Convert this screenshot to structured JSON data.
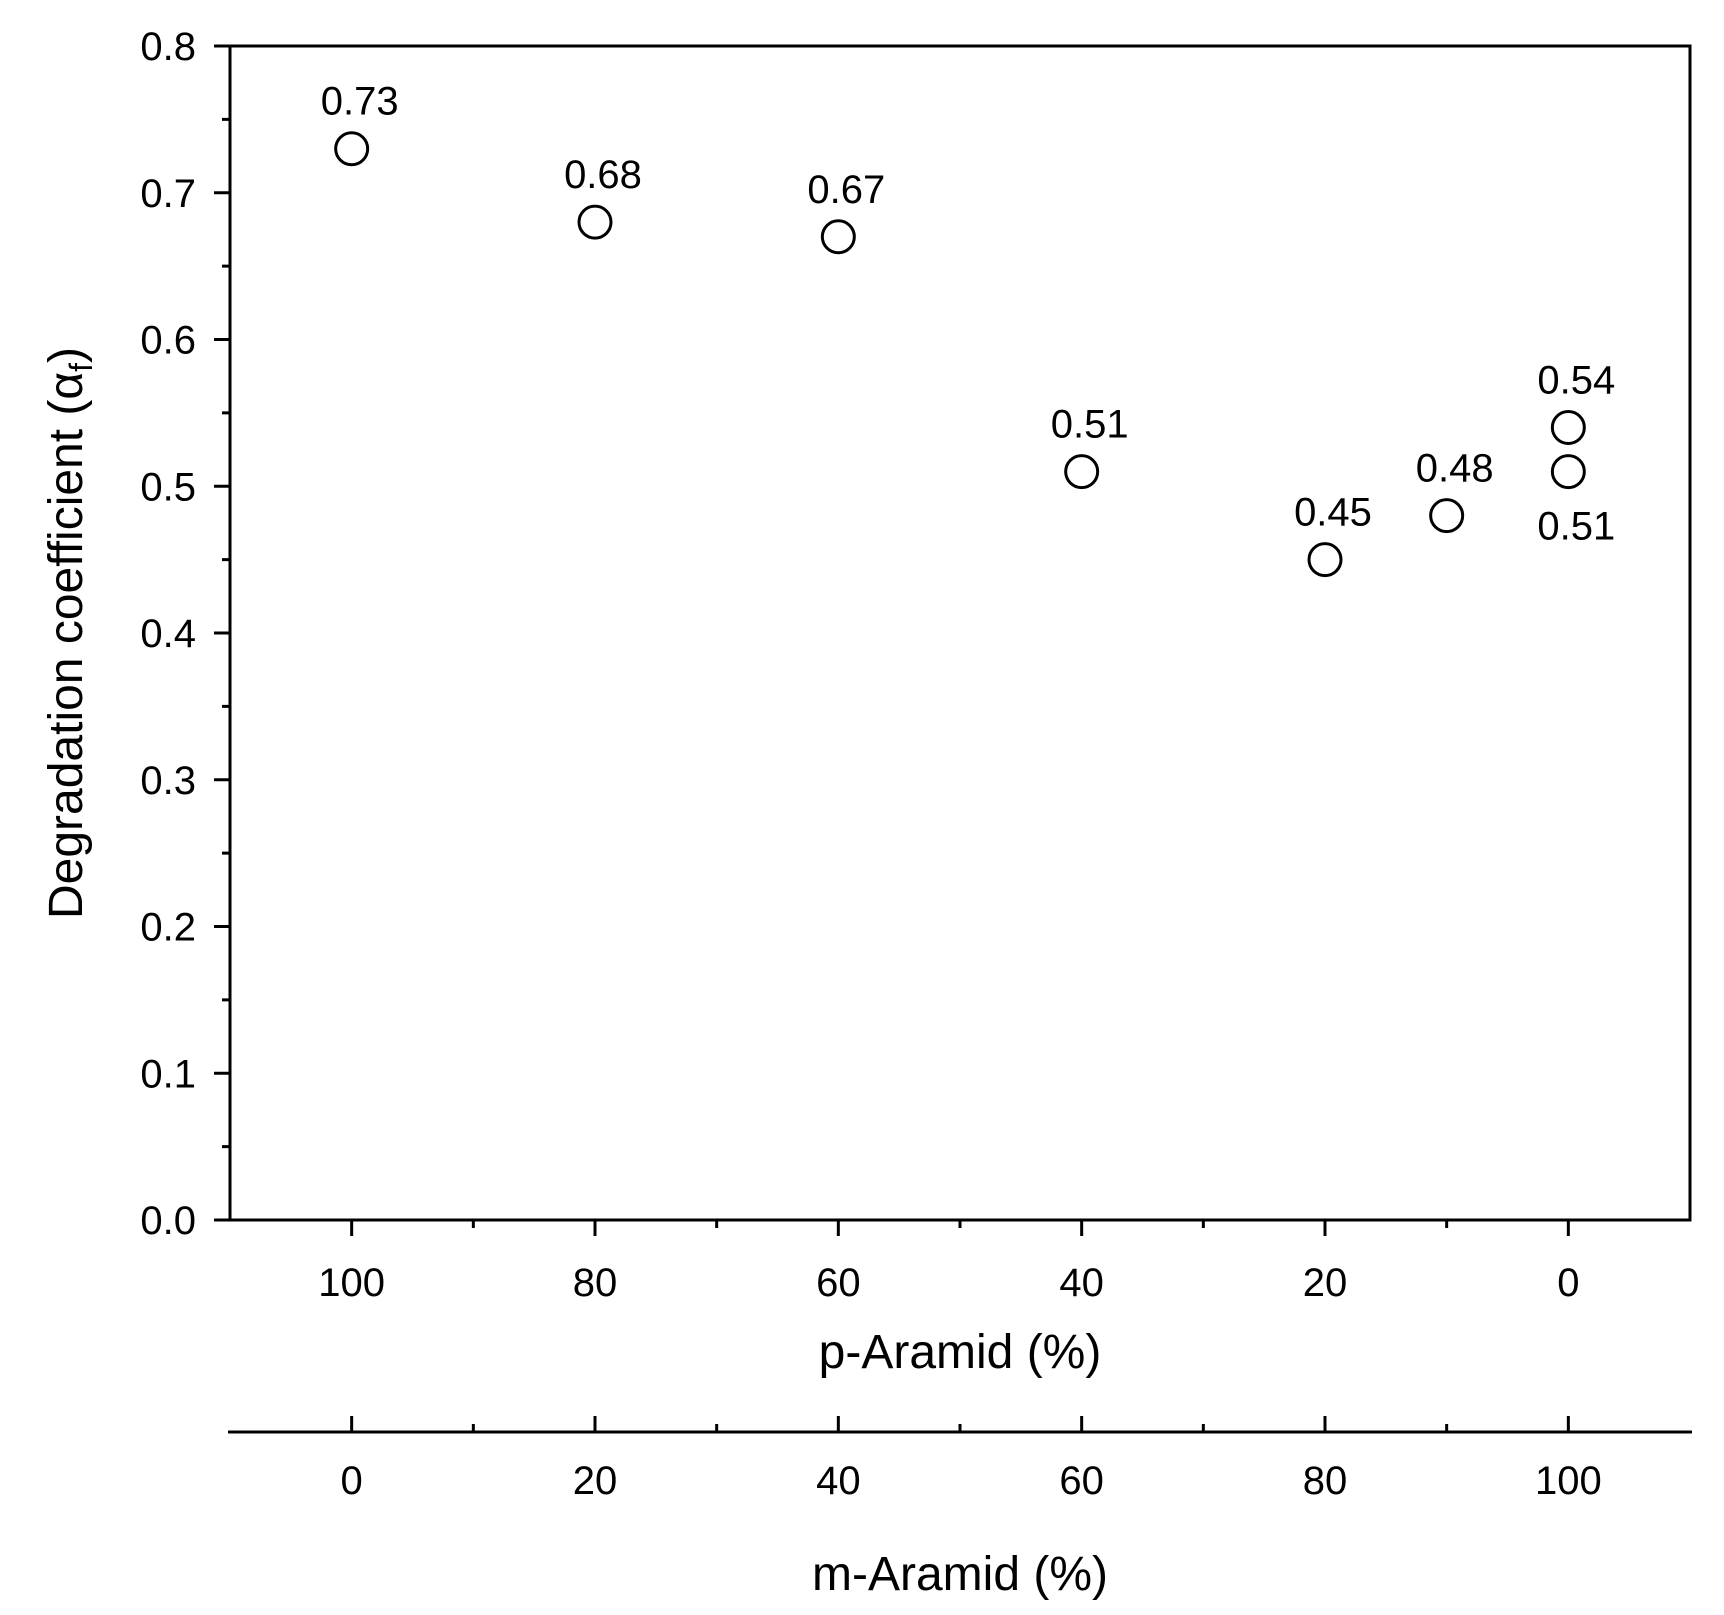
{
  "chart_data": {
    "type": "scatter",
    "ylabel": "Degradation coefficient (",
    "ylabel_symbol": "α",
    "ylabel_subscript": "f",
    "ylabel_close": ")",
    "xlabel": "p-Aramid (%)",
    "x2label": "m-Aramid (%)",
    "ylim": [
      0,
      0.8
    ],
    "xlim": [
      110,
      -10
    ],
    "x2lim": [
      -10,
      110
    ],
    "yticks": [
      "0.0",
      "0.1",
      "0.2",
      "0.3",
      "0.4",
      "0.5",
      "0.6",
      "0.7",
      "0.8"
    ],
    "xticks": [
      "100",
      "80",
      "60",
      "40",
      "20",
      "0"
    ],
    "x2ticks": [
      "0",
      "20",
      "40",
      "60",
      "80",
      "100"
    ],
    "points": [
      {
        "x": 100,
        "y": 0.73,
        "label": "0.73"
      },
      {
        "x": 80,
        "y": 0.68,
        "label": "0.68"
      },
      {
        "x": 60,
        "y": 0.67,
        "label": "0.67"
      },
      {
        "x": 40,
        "y": 0.51,
        "label": "0.51"
      },
      {
        "x": 20,
        "y": 0.45,
        "label": "0.45"
      },
      {
        "x": 10,
        "y": 0.48,
        "label": "0.48"
      },
      {
        "x": 0,
        "y": 0.54,
        "label": "0.54"
      },
      {
        "x": 0,
        "y": 0.51,
        "label": "0.51"
      }
    ]
  }
}
